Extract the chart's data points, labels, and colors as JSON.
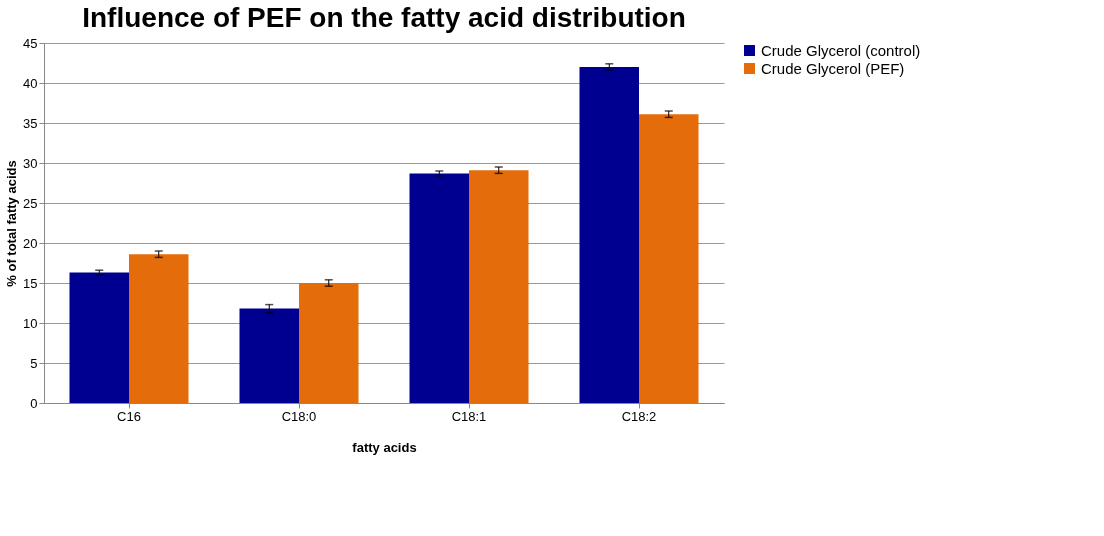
{
  "chart_data": {
    "type": "bar",
    "title": "Influence of PEF on the fatty acid distribution",
    "xlabel": "fatty acids",
    "ylabel": "% of total fatty acids",
    "categories": [
      "C16",
      "C18:0",
      "C18:1",
      "C18:2"
    ],
    "series": [
      {
        "name": "Crude Glycerol (control)",
        "color": "#000090",
        "values": [
          16.3,
          11.8,
          28.7,
          42.0
        ],
        "errors": [
          0.3,
          0.5,
          0.3,
          0.4
        ]
      },
      {
        "name": "Crude Glycerol (PEF)",
        "color": "#e46c0a",
        "values": [
          18.6,
          15.0,
          29.1,
          36.1
        ],
        "errors": [
          0.4,
          0.4,
          0.4,
          0.4
        ]
      }
    ],
    "ylim": [
      0,
      45
    ],
    "yticks": [
      0,
      5,
      10,
      15,
      20,
      25,
      30,
      35,
      40,
      45
    ],
    "grid": "y",
    "legend": "right"
  }
}
